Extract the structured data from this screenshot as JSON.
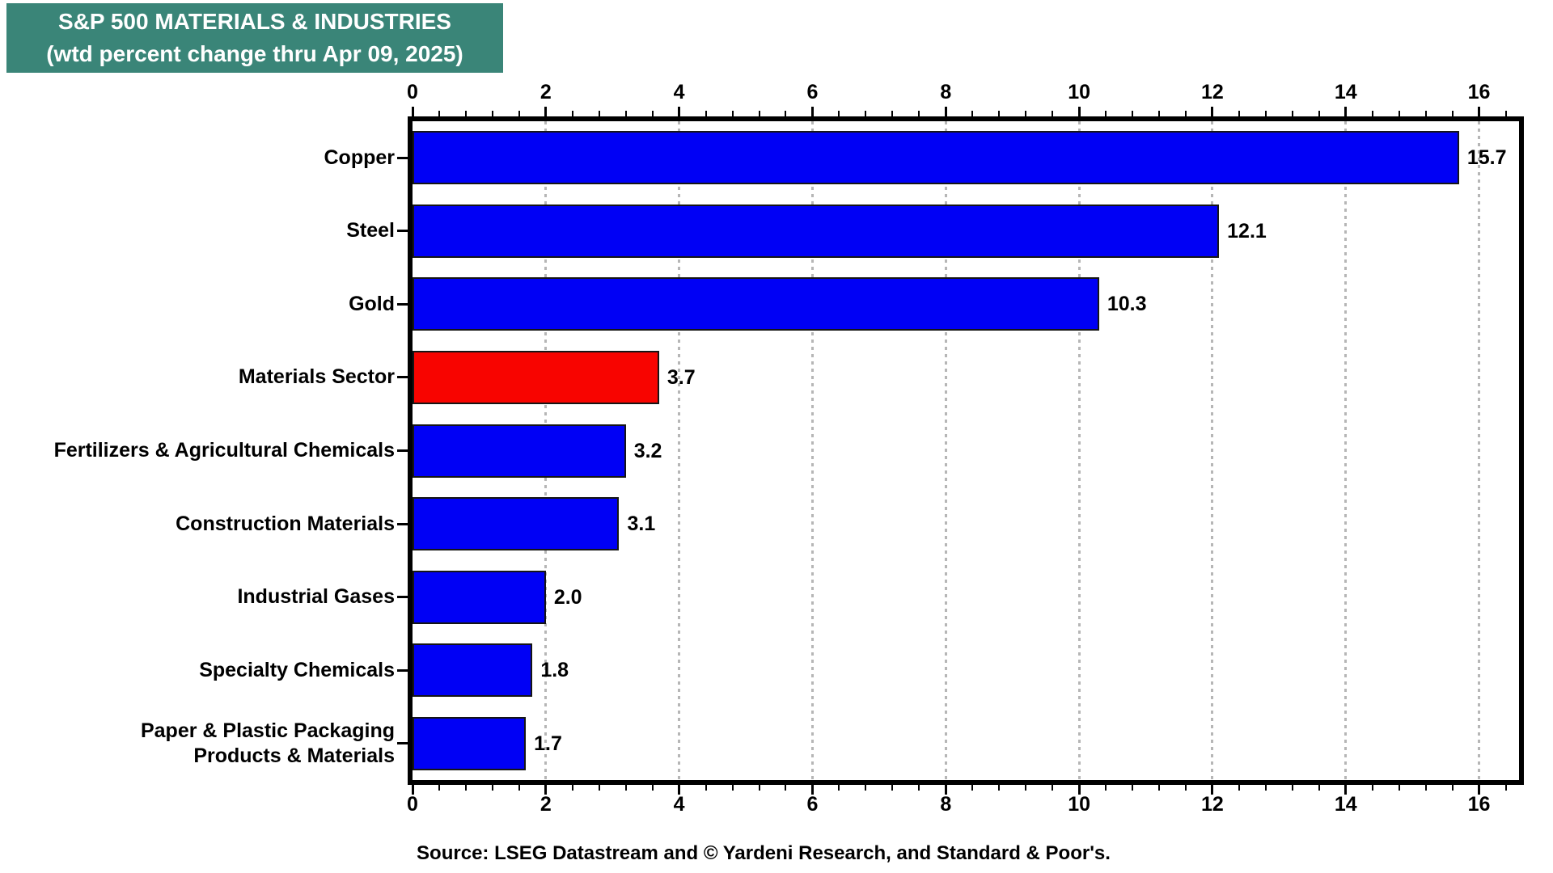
{
  "title": {
    "line1": "S&P 500 MATERIALS & INDUSTRIES",
    "line2": "(wtd percent change thru Apr 09, 2025)"
  },
  "source": "Source: LSEG Datastream and © Yardeni Research, and Standard & Poor's.",
  "colors": {
    "title_bg": "#3A8578",
    "title_text": "#FFFFFF",
    "bar_blue": "#0000F5",
    "bar_red": "#F80400",
    "bar_border": "#151515",
    "frame": "#000000",
    "grid": "#B6B6B6"
  },
  "chart_data": {
    "type": "bar",
    "orientation": "horizontal",
    "title": "S&P 500 MATERIALS & INDUSTRIES (wtd percent change thru Apr 09, 2025)",
    "categories": [
      "Copper",
      "Steel",
      "Gold",
      "Materials Sector",
      "Fertilizers & Agricultural Chemicals",
      "Construction Materials",
      "Industrial Gases",
      "Specialty Chemicals",
      "Paper & Plastic Packaging\nProducts & Materials"
    ],
    "values": [
      15.7,
      12.1,
      10.3,
      3.7,
      3.2,
      3.1,
      2.0,
      1.8,
      1.7
    ],
    "value_labels": [
      "15.7",
      "12.1",
      "10.3",
      "3.7",
      "3.2",
      "3.1",
      "2.0",
      "1.8",
      "1.7"
    ],
    "highlight_index": 3,
    "xlim": [
      0,
      16.6
    ],
    "x_major_ticks": [
      0,
      2,
      4,
      6,
      8,
      10,
      12,
      14,
      16
    ],
    "x_major_tick_labels": [
      "0",
      "2",
      "4",
      "6",
      "8",
      "10",
      "12",
      "14",
      "16"
    ],
    "x_minor_tick_step": 0.4,
    "grid": "dotted vertical gridlines at major ticks",
    "axis_ticks_position": "top and bottom",
    "legend": "none"
  }
}
